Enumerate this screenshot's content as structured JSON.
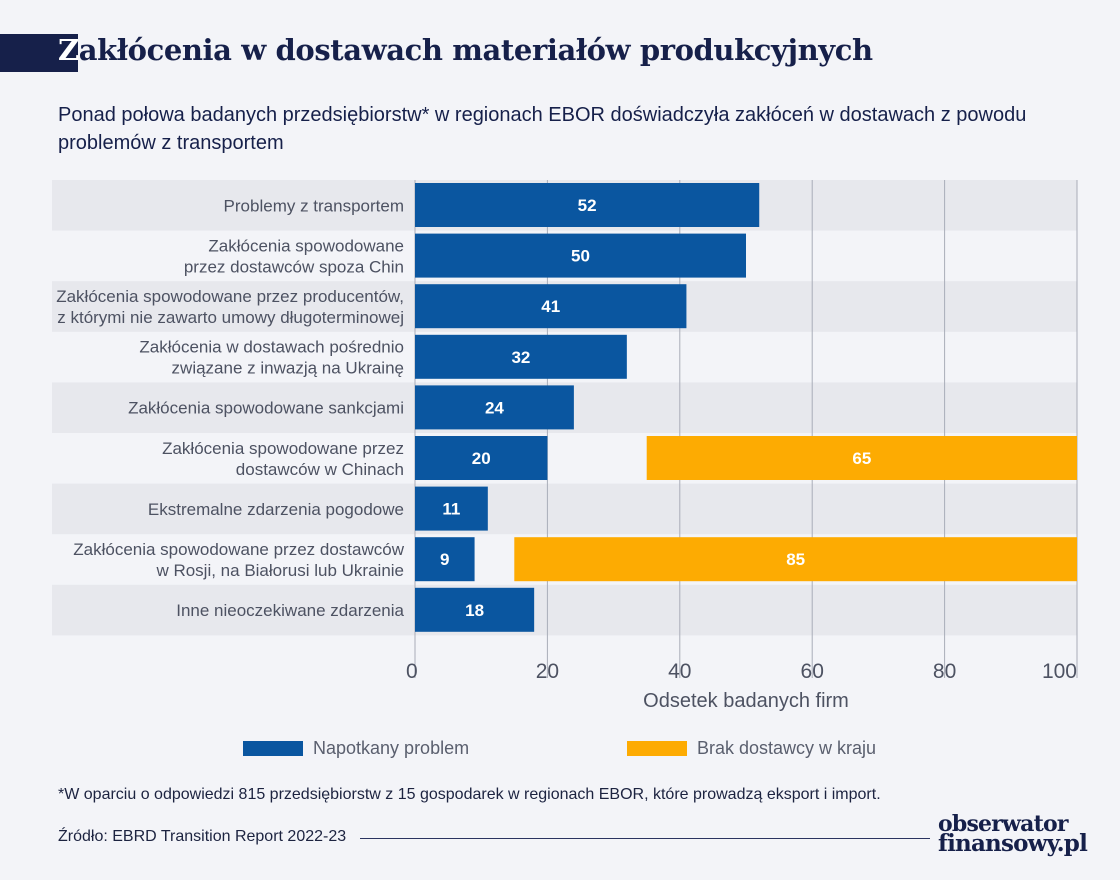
{
  "title": {
    "cap": "Z",
    "rest": "akłócenia w dostawach materiałów produkcyjnych"
  },
  "subtitle": "Ponad połowa badanych przedsiębiorstw* w regionach EBOR doświadczyła zakłóceń w dostawach z powodu problemów z transportem",
  "legend": [
    {
      "label": "Napotkany problem",
      "color": "#0a56a0"
    },
    {
      "label": "Brak dostawcy w kraju",
      "color": "#fdab02"
    }
  ],
  "footnote": "*W oparciu o odpowiedzi 815 przedsiębiorstw z 15 gospodarek w regionach EBOR, które prowadzą eksport i import.",
  "source": "Źródło: EBRD Transition Report 2022-23",
  "logo": {
    "line1": "obserwator",
    "line2": "finansowy.pl"
  },
  "chart_data": {
    "type": "bar",
    "orientation": "horizontal",
    "categories": [
      [
        "Problemy z transportem"
      ],
      [
        "Zakłócenia spowodowane",
        "przez dostawców spoza Chin"
      ],
      [
        "Zakłócenia spowodowane przez producentów,",
        "z którymi nie zawarto umowy długoterminowej"
      ],
      [
        "Zakłócenia w dostawach pośrednio",
        "związane z inwazją na Ukrainę"
      ],
      [
        "Zakłócenia spowodowane sankcjami"
      ],
      [
        "Zakłócenia spowodowane przez",
        "dostawców w Chinach"
      ],
      [
        "Ekstremalne zdarzenia pogodowe"
      ],
      [
        "Zakłócenia spowodowane przez dostawców",
        "w Rosji, na Białorusi lub Ukrainie"
      ],
      [
        "Inne nieoczekiwane zdarzenia"
      ]
    ],
    "series": [
      {
        "name": "Napotkany problem",
        "color": "#0a56a0",
        "values": [
          52,
          50,
          41,
          32,
          24,
          20,
          11,
          9,
          18
        ]
      },
      {
        "name": "Brak dostawcy w kraju",
        "color": "#fdab02",
        "values": [
          null,
          null,
          null,
          null,
          null,
          65,
          null,
          85,
          null
        ]
      }
    ],
    "xlabel": "Odsetek badanych firm",
    "xlim": [
      0,
      100
    ],
    "xticks": [
      0,
      20,
      40,
      60,
      80,
      100
    ],
    "grid": true
  }
}
